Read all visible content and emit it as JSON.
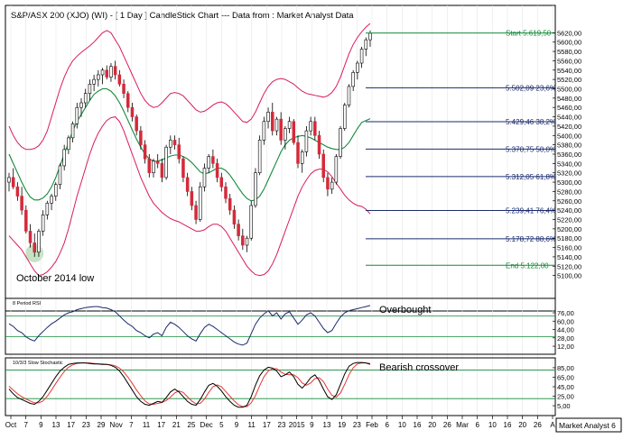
{
  "chart_title": "S&P/ASX 200 (XJO) (WI) -  [ 1 Day ] CandleStick Chart --- Data from : Market Analyst Data",
  "colors": {
    "up": "#ffffff",
    "down": "#d42a3a",
    "candle_outline": "#000000",
    "bollinger": "#d81b60",
    "mid_band": "#138a3a",
    "rsi": "#1a2a6c",
    "stoch_k": "#000000",
    "stoch_d": "#e53935",
    "fib_line": "#1a2a6c",
    "start_end": "#138a3a",
    "highlight": "#7fbf7f"
  },
  "chart_data": [
    {
      "type": "candlestick",
      "title": "",
      "ylim": [
        5080,
        5640
      ],
      "y_ticks": [
        "5620,00",
        "5600,00",
        "5580,00",
        "5560,00",
        "5540,00",
        "5520,00",
        "5500,00",
        "5480,00",
        "5460,00",
        "5440,00",
        "5420,00",
        "5400,00",
        "5380,00",
        "5360,00",
        "5340,00",
        "5320,00",
        "5300,00",
        "5280,00",
        "5260,00",
        "5240,00",
        "5220,00",
        "5200,00",
        "5180,00",
        "5160,00",
        "5140,00",
        "5120,00",
        "5100,00"
      ],
      "y_tick_values": [
        5620,
        5600,
        5580,
        5560,
        5540,
        5520,
        5500,
        5480,
        5460,
        5440,
        5420,
        5400,
        5380,
        5360,
        5340,
        5320,
        5300,
        5280,
        5260,
        5240,
        5220,
        5200,
        5180,
        5160,
        5140,
        5120,
        5100
      ],
      "x_labels": [
        "Oct",
        "7",
        "9",
        "13",
        "17",
        "23",
        "29",
        "Nov",
        "7",
        "11",
        "17",
        "21",
        "25",
        "Dec",
        "5",
        "9",
        "11",
        "17",
        "23",
        "2015",
        "9",
        "13",
        "19",
        "23",
        "Feb",
        "6",
        "10",
        "16",
        "20",
        "26",
        "Mar",
        "6",
        "10",
        "16",
        "20",
        "26",
        "A"
      ],
      "corner_label": "Market Analyst 6",
      "fib_levels": [
        {
          "label": "Start 5.619,50",
          "value": 5619.5,
          "kind": "start"
        },
        {
          "label": "5.502,09 23,6%",
          "value": 5502.09,
          "kind": "fib"
        },
        {
          "label": "5.429,46 38,2%",
          "value": 5429.46,
          "kind": "fib"
        },
        {
          "label": "5.370,75 50,0%",
          "value": 5370.75,
          "kind": "fib"
        },
        {
          "label": "5.312,05 61,8%",
          "value": 5312.05,
          "kind": "fib"
        },
        {
          "label": "5.239,41 76,4%",
          "value": 5239.41,
          "kind": "fib"
        },
        {
          "label": "5.178,72 88,6%",
          "value": 5178.72,
          "kind": "fib"
        },
        {
          "label": "End 5.122,00",
          "value": 5122.0,
          "kind": "end"
        }
      ],
      "annotation": "October 2014 low",
      "ohlc": [
        [
          5300,
          5320,
          5280,
          5310
        ],
        [
          5310,
          5330,
          5285,
          5290
        ],
        [
          5290,
          5300,
          5260,
          5270
        ],
        [
          5270,
          5290,
          5230,
          5240
        ],
        [
          5240,
          5250,
          5190,
          5195
        ],
        [
          5195,
          5210,
          5160,
          5170
        ],
        [
          5170,
          5190,
          5140,
          5150
        ],
        [
          5150,
          5200,
          5140,
          5195
        ],
        [
          5195,
          5240,
          5185,
          5230
        ],
        [
          5230,
          5260,
          5220,
          5255
        ],
        [
          5255,
          5275,
          5240,
          5270
        ],
        [
          5270,
          5300,
          5260,
          5295
        ],
        [
          5295,
          5340,
          5285,
          5335
        ],
        [
          5335,
          5380,
          5325,
          5370
        ],
        [
          5370,
          5400,
          5360,
          5395
        ],
        [
          5395,
          5430,
          5385,
          5425
        ],
        [
          5425,
          5470,
          5415,
          5460
        ],
        [
          5460,
          5480,
          5440,
          5470
        ],
        [
          5470,
          5500,
          5460,
          5490
        ],
        [
          5490,
          5520,
          5475,
          5510
        ],
        [
          5510,
          5530,
          5495,
          5520
        ],
        [
          5520,
          5540,
          5505,
          5530
        ],
        [
          5530,
          5545,
          5510,
          5540
        ],
        [
          5540,
          5550,
          5520,
          5525
        ],
        [
          5525,
          5555,
          5515,
          5548
        ],
        [
          5548,
          5560,
          5520,
          5530
        ],
        [
          5530,
          5540,
          5505,
          5510
        ],
        [
          5510,
          5520,
          5480,
          5490
        ],
        [
          5490,
          5495,
          5450,
          5460
        ],
        [
          5460,
          5470,
          5430,
          5440
        ],
        [
          5440,
          5445,
          5400,
          5410
        ],
        [
          5410,
          5420,
          5370,
          5380
        ],
        [
          5380,
          5390,
          5340,
          5350
        ],
        [
          5350,
          5360,
          5310,
          5320
        ],
        [
          5320,
          5350,
          5310,
          5345
        ],
        [
          5345,
          5360,
          5330,
          5340
        ],
        [
          5340,
          5350,
          5300,
          5310
        ],
        [
          5310,
          5380,
          5305,
          5375
        ],
        [
          5375,
          5400,
          5360,
          5390
        ],
        [
          5390,
          5400,
          5370,
          5380
        ],
        [
          5380,
          5395,
          5340,
          5350
        ],
        [
          5350,
          5355,
          5300,
          5310
        ],
        [
          5310,
          5320,
          5270,
          5280
        ],
        [
          5280,
          5290,
          5240,
          5250
        ],
        [
          5250,
          5260,
          5210,
          5220
        ],
        [
          5220,
          5300,
          5215,
          5290
        ],
        [
          5290,
          5340,
          5280,
          5330
        ],
        [
          5330,
          5360,
          5320,
          5355
        ],
        [
          5355,
          5370,
          5330,
          5340
        ],
        [
          5340,
          5350,
          5300,
          5310
        ],
        [
          5310,
          5320,
          5280,
          5290
        ],
        [
          5290,
          5300,
          5255,
          5265
        ],
        [
          5265,
          5275,
          5230,
          5240
        ],
        [
          5240,
          5250,
          5200,
          5210
        ],
        [
          5210,
          5220,
          5175,
          5185
        ],
        [
          5185,
          5200,
          5155,
          5165
        ],
        [
          5165,
          5185,
          5150,
          5180
        ],
        [
          5180,
          5260,
          5175,
          5250
        ],
        [
          5250,
          5330,
          5245,
          5320
        ],
        [
          5320,
          5400,
          5315,
          5390
        ],
        [
          5390,
          5440,
          5380,
          5430
        ],
        [
          5430,
          5460,
          5415,
          5450
        ],
        [
          5450,
          5470,
          5400,
          5410
        ],
        [
          5410,
          5440,
          5400,
          5435
        ],
        [
          5435,
          5450,
          5380,
          5390
        ],
        [
          5390,
          5420,
          5370,
          5415
        ],
        [
          5415,
          5440,
          5405,
          5430
        ],
        [
          5430,
          5435,
          5380,
          5385
        ],
        [
          5385,
          5400,
          5330,
          5340
        ],
        [
          5340,
          5370,
          5320,
          5365
        ],
        [
          5365,
          5420,
          5355,
          5410
        ],
        [
          5410,
          5440,
          5400,
          5430
        ],
        [
          5430,
          5440,
          5390,
          5400
        ],
        [
          5400,
          5410,
          5350,
          5360
        ],
        [
          5360,
          5370,
          5300,
          5310
        ],
        [
          5310,
          5320,
          5270,
          5285
        ],
        [
          5285,
          5310,
          5275,
          5300
        ],
        [
          5300,
          5360,
          5295,
          5355
        ],
        [
          5355,
          5420,
          5350,
          5415
        ],
        [
          5415,
          5470,
          5410,
          5465
        ],
        [
          5465,
          5510,
          5460,
          5505
        ],
        [
          5505,
          5540,
          5495,
          5535
        ],
        [
          5535,
          5560,
          5520,
          5555
        ],
        [
          5555,
          5590,
          5545,
          5585
        ],
        [
          5585,
          5610,
          5570,
          5605
        ],
        [
          5605,
          5625,
          5590,
          5619
        ]
      ],
      "upper_band": [
        5420,
        5400,
        5385,
        5375,
        5370,
        5370,
        5372,
        5378,
        5390,
        5410,
        5440,
        5470,
        5500,
        5525,
        5545,
        5560,
        5570,
        5578,
        5585,
        5592,
        5600,
        5610,
        5620,
        5625,
        5620,
        5605,
        5590,
        5570,
        5550,
        5530,
        5510,
        5490,
        5475,
        5465,
        5460,
        5462,
        5470,
        5480,
        5490,
        5492,
        5490,
        5485,
        5475,
        5465,
        5455,
        5450,
        5452,
        5458,
        5465,
        5470,
        5472,
        5468,
        5460,
        5450,
        5440,
        5430,
        5428,
        5435,
        5450,
        5470,
        5490,
        5505,
        5515,
        5520,
        5522,
        5520,
        5515,
        5510,
        5502,
        5495,
        5490,
        5488,
        5486,
        5484,
        5482,
        5485,
        5492,
        5505,
        5525,
        5550,
        5575,
        5595,
        5610,
        5622,
        5632,
        5640
      ],
      "lower_band": [
        5185,
        5175,
        5165,
        5155,
        5140,
        5125,
        5110,
        5100,
        5102,
        5108,
        5118,
        5130,
        5148,
        5170,
        5200,
        5235,
        5270,
        5300,
        5330,
        5360,
        5385,
        5405,
        5420,
        5432,
        5438,
        5440,
        5430,
        5410,
        5385,
        5360,
        5335,
        5310,
        5290,
        5270,
        5255,
        5245,
        5235,
        5228,
        5222,
        5218,
        5215,
        5210,
        5205,
        5200,
        5195,
        5195,
        5198,
        5205,
        5210,
        5210,
        5205,
        5195,
        5180,
        5165,
        5150,
        5135,
        5120,
        5110,
        5102,
        5100,
        5102,
        5110,
        5125,
        5145,
        5170,
        5195,
        5220,
        5245,
        5270,
        5290,
        5305,
        5318,
        5325,
        5328,
        5328,
        5322,
        5312,
        5298,
        5285,
        5272,
        5262,
        5255,
        5250,
        5248,
        5242,
        5232
      ],
      "mid_band": [
        5360,
        5340,
        5320,
        5300,
        5282,
        5268,
        5262,
        5262,
        5266,
        5275,
        5290,
        5310,
        5335,
        5360,
        5385,
        5410,
        5430,
        5445,
        5460,
        5475,
        5488,
        5495,
        5500,
        5500,
        5495,
        5485,
        5470,
        5452,
        5432,
        5412,
        5392,
        5375,
        5360,
        5350,
        5345,
        5345,
        5348,
        5352,
        5356,
        5358,
        5358,
        5355,
        5350,
        5342,
        5332,
        5322,
        5318,
        5320,
        5325,
        5330,
        5330,
        5325,
        5315,
        5302,
        5288,
        5275,
        5265,
        5260,
        5262,
        5270,
        5285,
        5305,
        5325,
        5345,
        5365,
        5380,
        5390,
        5395,
        5398,
        5400,
        5398,
        5395,
        5390,
        5385,
        5380,
        5375,
        5372,
        5370,
        5370,
        5375,
        5385,
        5400,
        5415,
        5428,
        5432,
        5436
      ]
    },
    {
      "type": "line",
      "panel_label": "8 Period RSI",
      "annotation": "Overbought",
      "ylim": [
        0,
        95
      ],
      "y_ticks": [
        "76,00",
        "60,00",
        "44,00",
        "28,00",
        "12,00"
      ],
      "y_tick_values": [
        76,
        60,
        44,
        28,
        12
      ],
      "reference_lines": [
        70,
        30
      ],
      "series": [
        {
          "values": [
            55,
            50,
            42,
            38,
            30,
            25,
            22,
            32,
            40,
            48,
            55,
            60,
            66,
            72,
            76,
            78,
            82,
            84,
            86,
            87,
            88,
            88,
            86,
            85,
            82,
            78,
            70,
            62,
            55,
            50,
            42,
            38,
            32,
            28,
            35,
            38,
            32,
            48,
            58,
            54,
            48,
            40,
            32,
            26,
            22,
            36,
            48,
            54,
            50,
            44,
            38,
            32,
            26,
            20,
            16,
            14,
            18,
            36,
            54,
            66,
            74,
            80,
            70,
            76,
            64,
            74,
            78,
            66,
            54,
            62,
            72,
            76,
            70,
            58,
            46,
            38,
            42,
            56,
            68,
            76,
            80,
            82,
            84,
            86,
            88,
            90
          ]
        }
      ]
    },
    {
      "type": "line",
      "panel_label": "10/3/3 Slow Stochastic",
      "annotation": "Bearish crossover",
      "ylim": [
        -10,
        100
      ],
      "y_ticks": [
        "85,00",
        "65,00",
        "45,00",
        "25,00",
        "5,00"
      ],
      "y_tick_values": [
        85,
        65,
        45,
        25,
        5
      ],
      "reference_lines": [
        80,
        20
      ],
      "series": [
        {
          "values": [
            40,
            30,
            22,
            18,
            14,
            10,
            8,
            14,
            24,
            38,
            52,
            66,
            78,
            86,
            92,
            94,
            95,
            95,
            95,
            94,
            93,
            93,
            92,
            92,
            90,
            86,
            78,
            66,
            52,
            38,
            24,
            14,
            8,
            6,
            10,
            14,
            12,
            22,
            34,
            40,
            34,
            24,
            14,
            8,
            6,
            18,
            34,
            48,
            52,
            46,
            36,
            24,
            14,
            6,
            2,
            2,
            6,
            24,
            48,
            68,
            80,
            86,
            84,
            78,
            66,
            70,
            76,
            66,
            50,
            42,
            52,
            64,
            70,
            58,
            40,
            24,
            18,
            28,
            50,
            72,
            88,
            94,
            96,
            96,
            95,
            92
          ]
        },
        {
          "values": [
            46,
            38,
            30,
            24,
            19,
            15,
            11,
            11,
            15,
            25,
            38,
            52,
            65,
            77,
            86,
            91,
            94,
            95,
            95,
            95,
            94,
            93,
            93,
            92,
            91,
            89,
            84,
            76,
            65,
            52,
            38,
            26,
            15,
            9,
            8,
            10,
            12,
            16,
            23,
            32,
            36,
            33,
            24,
            15,
            9,
            10,
            19,
            33,
            45,
            49,
            45,
            35,
            25,
            15,
            7,
            3,
            3,
            11,
            26,
            47,
            66,
            78,
            83,
            83,
            76,
            71,
            70,
            70,
            64,
            53,
            48,
            53,
            62,
            64,
            56,
            40,
            27,
            23,
            32,
            50,
            70,
            85,
            93,
            95,
            95,
            94
          ]
        }
      ]
    }
  ]
}
